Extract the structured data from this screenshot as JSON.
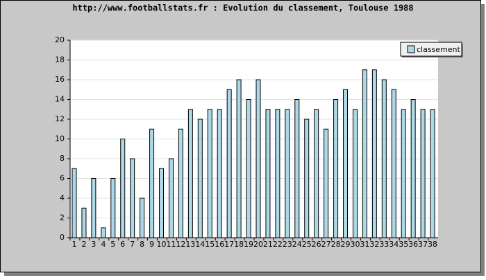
{
  "chart_data": {
    "type": "bar",
    "title": "http://www.footballstats.fr : Evolution du classement, Toulouse 1988",
    "categories": [
      "1",
      "2",
      "3",
      "4",
      "5",
      "6",
      "7",
      "8",
      "9",
      "10",
      "11",
      "12",
      "13",
      "14",
      "15",
      "16",
      "17",
      "18",
      "19",
      "20",
      "21",
      "22",
      "23",
      "24",
      "25",
      "26",
      "27",
      "28",
      "29",
      "30",
      "31",
      "32",
      "33",
      "34",
      "35",
      "36",
      "37",
      "38"
    ],
    "series": [
      {
        "name": "classement",
        "color": "#add8e6",
        "values": [
          7,
          3,
          6,
          1,
          6,
          10,
          8,
          4,
          11,
          7,
          8,
          11,
          13,
          12,
          13,
          13,
          15,
          16,
          14,
          16,
          13,
          13,
          13,
          14,
          12,
          13,
          11,
          14,
          15,
          13,
          17,
          17,
          16,
          15,
          13,
          14,
          13,
          13
        ]
      }
    ],
    "ylim": [
      0,
      20
    ],
    "yticks": [
      0,
      2,
      4,
      6,
      8,
      10,
      12,
      14,
      16,
      18,
      20
    ],
    "grid": true,
    "legend": "top-right"
  }
}
